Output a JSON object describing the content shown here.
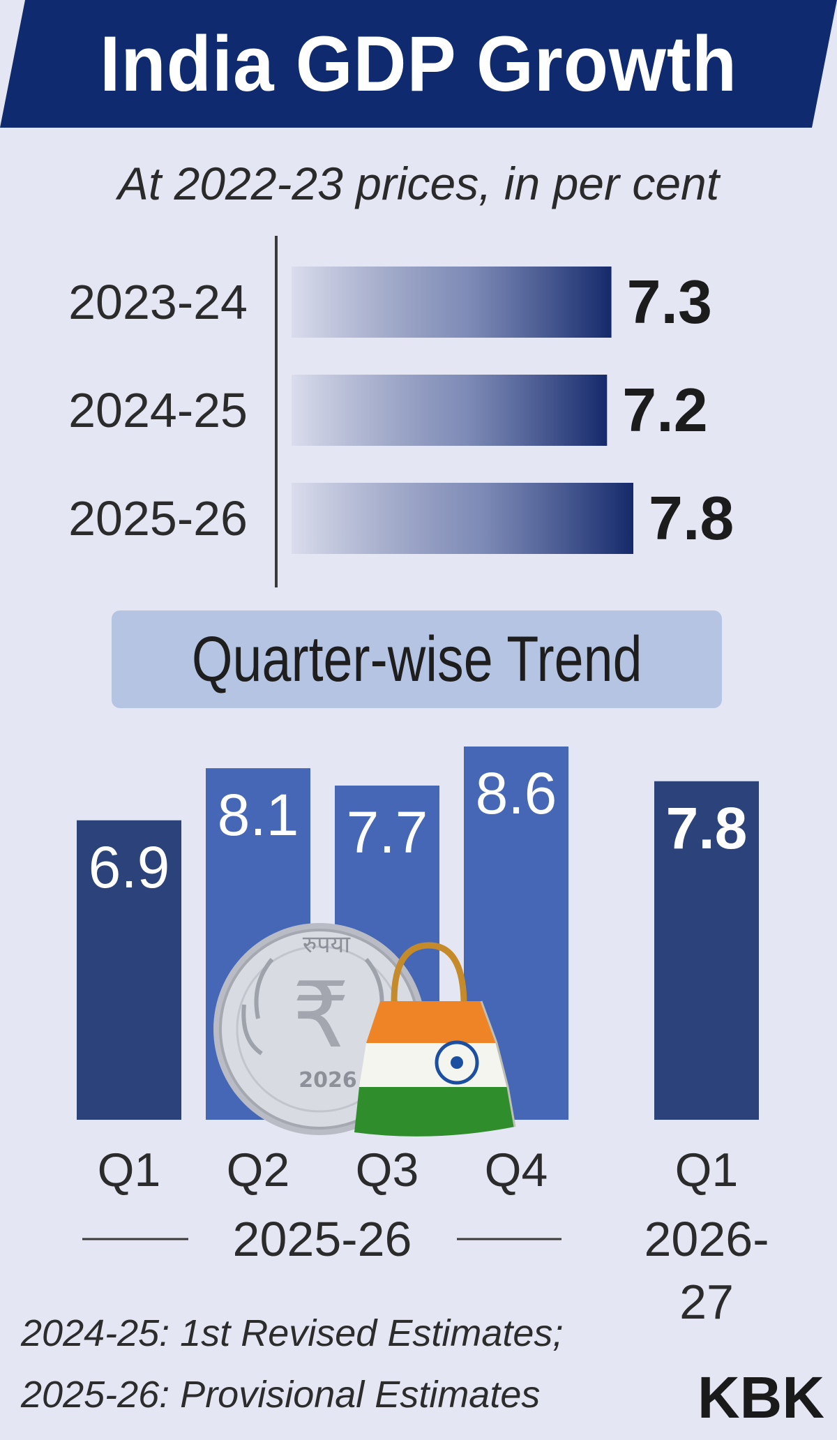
{
  "header": {
    "title": "India GDP Growth",
    "subtitle": "At 2022-23 prices, in per cent"
  },
  "section": {
    "quarter_title": "Quarter-wise Trend"
  },
  "footnotes": {
    "line1": "2024-25: 1st Revised Estimates;",
    "line2": "2025-26: Provisional Estimates"
  },
  "credit": "KBK",
  "colors": {
    "banner": "#0f2a6e",
    "annual_bar_dark": "#15296b",
    "dark_quarter_bar": "#2c427b",
    "light_quarter_bar": "#4667b6",
    "background": "#e4e6f3"
  },
  "illustration": {
    "coin_text": "रुपया",
    "coin_symbol": "₹",
    "coin_year": "2026",
    "bag_icon": "india-flag-shopping-bag-icon"
  },
  "chart_data": [
    {
      "type": "bar",
      "orientation": "horizontal",
      "title": "India GDP Growth",
      "subtitle": "At 2022-23 prices, in per cent",
      "categories": [
        "2023-24",
        "2024-25",
        "2025-26"
      ],
      "values": [
        7.3,
        7.2,
        7.8
      ],
      "value_labels": [
        "7.3",
        "7.2",
        "7.8"
      ],
      "xlim": [
        0,
        7.8
      ],
      "grid": false
    },
    {
      "type": "bar",
      "title": "Quarter-wise Trend",
      "categories": [
        "Q1",
        "Q2",
        "Q3",
        "Q4",
        "Q1"
      ],
      "values": [
        6.9,
        8.1,
        7.7,
        8.6,
        7.8
      ],
      "value_labels": [
        "6.9",
        "8.1",
        "7.7",
        "8.6",
        "7.8"
      ],
      "bar_colors": [
        "#2c427b",
        "#4667b6",
        "#4667b6",
        "#4667b6",
        "#2c427b"
      ],
      "groups": [
        {
          "label": "2025-26",
          "categories": [
            "Q1",
            "Q2",
            "Q3",
            "Q4"
          ]
        },
        {
          "label": "2026-27",
          "label_lines": [
            "2026-",
            "27"
          ],
          "categories": [
            "Q1"
          ]
        }
      ],
      "ylim": [
        0,
        8.6
      ],
      "grid": false
    }
  ]
}
